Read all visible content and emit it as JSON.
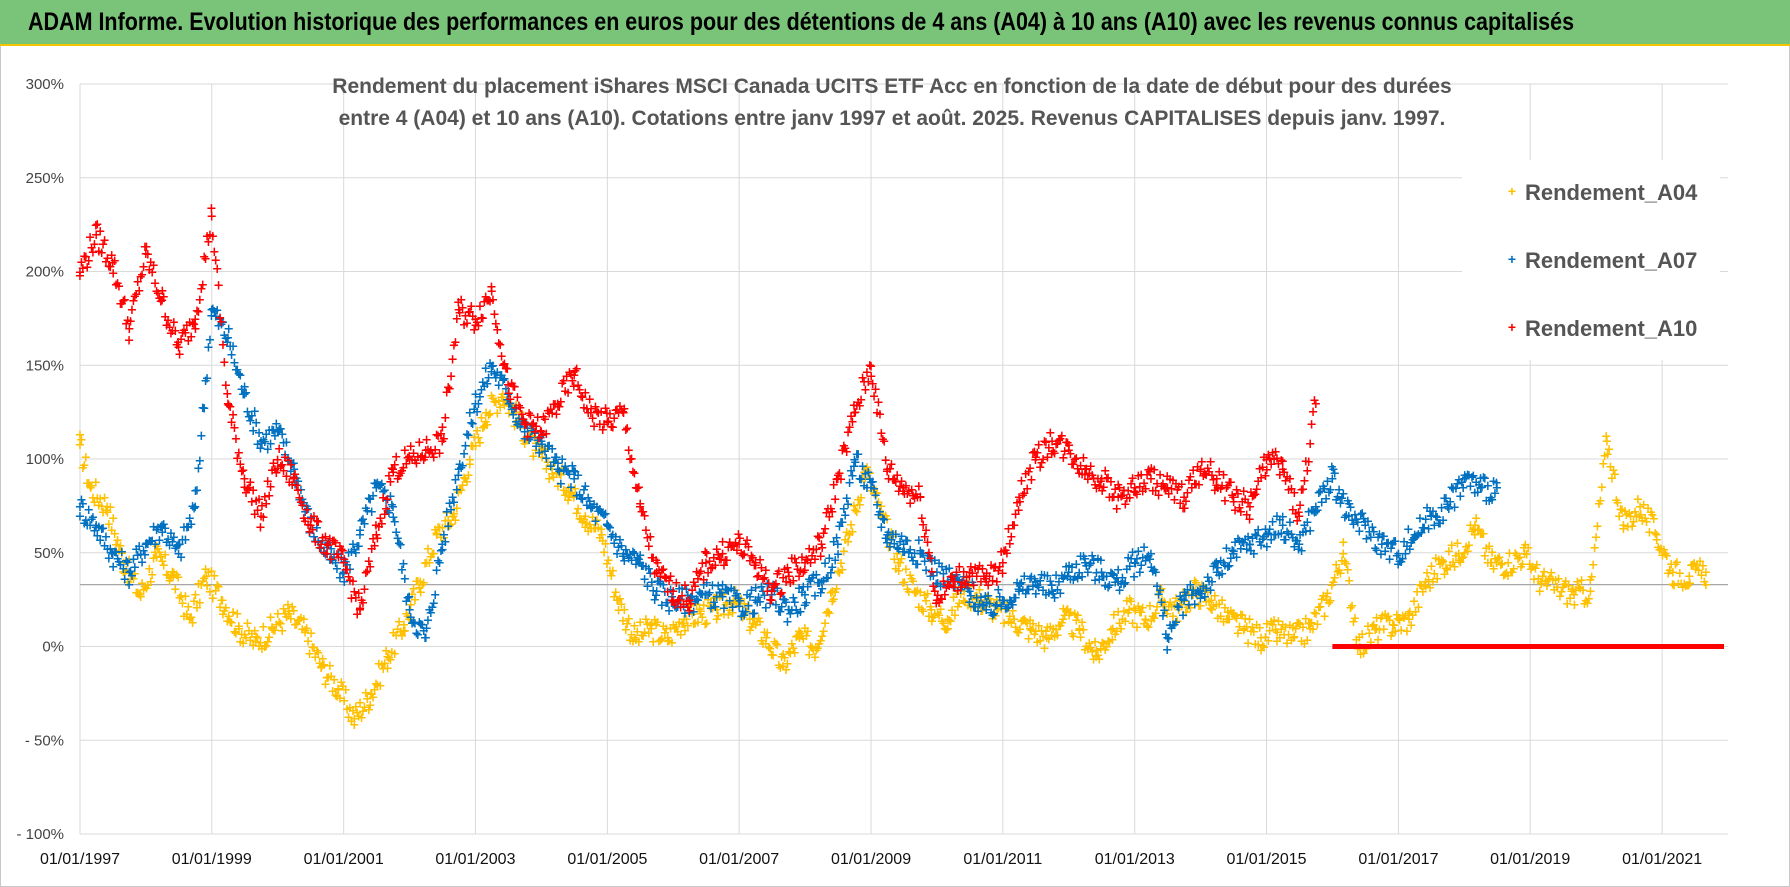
{
  "banner": {
    "title": "ADAM Informe. Evolution historique des performances en euros pour des détentions de 4 ans (A04) à 10 ans (A10) avec les revenus connus capitalisés"
  },
  "colors": {
    "banner_bg": "#7ac47a",
    "A04": "#ffc000",
    "A07": "#0070c0",
    "A10": "#ff0000",
    "grid": "#d9d9d9"
  },
  "chart_data": {
    "type": "scatter",
    "title_lines": [
      "Rendement du placement iShares MSCI Canada UCITS ETF Acc en fonction de la date de début pour des durées",
      "entre 4 (A04) et 10 ans (A10).  Cotations entre janv 1997 et août. 2025. Revenus CAPITALISES depuis janv. 1997."
    ],
    "y_ticks": [
      "- 100%",
      "- 50%",
      "0%",
      "50%",
      "100%",
      "150%",
      "200%",
      "250%",
      "300%"
    ],
    "ylim": [
      -100,
      300
    ],
    "x_ticks": [
      "01/01/1997",
      "01/01/1999",
      "01/01/2001",
      "01/01/2003",
      "01/01/2005",
      "01/01/2007",
      "01/01/2009",
      "01/01/2011",
      "01/01/2013",
      "01/01/2015",
      "01/01/2017",
      "01/01/2019",
      "01/01/2021"
    ],
    "xlim": [
      "1997-01-01",
      "2022-01-01"
    ],
    "reference_line_y": 33,
    "legend": {
      "placement": "top-right"
    },
    "series": [
      {
        "name": "Rendement_A04",
        "marker": "+",
        "points": [
          [
            "1997-01",
            108
          ],
          [
            "1997-03",
            85
          ],
          [
            "1997-06",
            75
          ],
          [
            "1997-09",
            45
          ],
          [
            "1997-12",
            28
          ],
          [
            "1998-03",
            48
          ],
          [
            "1998-06",
            38
          ],
          [
            "1998-09",
            15
          ],
          [
            "1998-12",
            38
          ],
          [
            "1999-03",
            25
          ],
          [
            "1999-06",
            10
          ],
          [
            "1999-09",
            3
          ],
          [
            "1999-12",
            10
          ],
          [
            "2000-03",
            18
          ],
          [
            "2000-06",
            8
          ],
          [
            "2000-09",
            -10
          ],
          [
            "2000-12",
            -22
          ],
          [
            "2001-03",
            -38
          ],
          [
            "2001-06",
            -25
          ],
          [
            "2001-09",
            -5
          ],
          [
            "2001-12",
            12
          ],
          [
            "2002-03",
            35
          ],
          [
            "2002-06",
            60
          ],
          [
            "2002-09",
            70
          ],
          [
            "2002-12",
            100
          ],
          [
            "2003-03",
            125
          ],
          [
            "2003-06",
            135
          ],
          [
            "2003-09",
            120
          ],
          [
            "2003-12",
            105
          ],
          [
            "2004-03",
            95
          ],
          [
            "2004-06",
            85
          ],
          [
            "2004-09",
            70
          ],
          [
            "2004-12",
            60
          ],
          [
            "2005-03",
            25
          ],
          [
            "2005-06",
            5
          ],
          [
            "2005-09",
            10
          ],
          [
            "2005-12",
            5
          ],
          [
            "2006-03",
            15
          ],
          [
            "2006-06",
            18
          ],
          [
            "2006-09",
            20
          ],
          [
            "2006-12",
            25
          ],
          [
            "2007-03",
            15
          ],
          [
            "2007-06",
            5
          ],
          [
            "2007-09",
            -10
          ],
          [
            "2007-12",
            5
          ],
          [
            "2008-03",
            0
          ],
          [
            "2008-06",
            30
          ],
          [
            "2008-09",
            60
          ],
          [
            "2008-12",
            95
          ],
          [
            "2009-03",
            70
          ],
          [
            "2009-06",
            45
          ],
          [
            "2009-09",
            30
          ],
          [
            "2009-12",
            20
          ],
          [
            "2010-03",
            15
          ],
          [
            "2010-06",
            30
          ],
          [
            "2010-09",
            25
          ],
          [
            "2010-12",
            20
          ],
          [
            "2011-03",
            15
          ],
          [
            "2011-06",
            10
          ],
          [
            "2011-09",
            5
          ],
          [
            "2011-12",
            15
          ],
          [
            "2012-03",
            10
          ],
          [
            "2012-06",
            -5
          ],
          [
            "2012-09",
            10
          ],
          [
            "2012-12",
            20
          ],
          [
            "2013-03",
            15
          ],
          [
            "2013-06",
            25
          ],
          [
            "2013-09",
            20
          ],
          [
            "2013-12",
            30
          ],
          [
            "2014-03",
            25
          ],
          [
            "2014-06",
            15
          ],
          [
            "2014-09",
            10
          ],
          [
            "2014-12",
            5
          ],
          [
            "2015-03",
            8
          ],
          [
            "2015-06",
            5
          ],
          [
            "2015-09",
            10
          ],
          [
            "2015-12",
            25
          ],
          [
            "2016-03",
            50
          ],
          [
            "2016-06",
            0
          ],
          [
            "2016-09",
            10
          ],
          [
            "2016-12",
            12
          ],
          [
            "2017-03",
            15
          ],
          [
            "2017-06",
            35
          ],
          [
            "2017-09",
            45
          ],
          [
            "2017-12",
            50
          ],
          [
            "2018-03",
            65
          ],
          [
            "2018-06",
            45
          ],
          [
            "2018-09",
            45
          ],
          [
            "2018-12",
            50
          ],
          [
            "2019-03",
            35
          ],
          [
            "2019-06",
            32
          ],
          [
            "2019-09",
            28
          ],
          [
            "2019-12",
            30
          ],
          [
            "2020-03",
            110
          ],
          [
            "2020-06",
            65
          ],
          [
            "2020-09",
            75
          ],
          [
            "2020-12",
            60
          ],
          [
            "2021-03",
            40
          ],
          [
            "2021-06",
            38
          ],
          [
            "2021-09",
            40
          ]
        ]
      },
      {
        "name": "Rendement_A07",
        "marker": "+",
        "points": [
          [
            "1997-01",
            75
          ],
          [
            "1997-04",
            65
          ],
          [
            "1997-07",
            50
          ],
          [
            "1997-10",
            40
          ],
          [
            "1998-01",
            55
          ],
          [
            "1998-04",
            65
          ],
          [
            "1998-07",
            50
          ],
          [
            "1998-10",
            75
          ],
          [
            "1999-01",
            180
          ],
          [
            "1999-04",
            165
          ],
          [
            "1999-07",
            135
          ],
          [
            "1999-10",
            110
          ],
          [
            "2000-01",
            115
          ],
          [
            "2000-04",
            95
          ],
          [
            "2000-07",
            65
          ],
          [
            "2000-10",
            50
          ],
          [
            "2001-01",
            40
          ],
          [
            "2001-04",
            60
          ],
          [
            "2001-07",
            85
          ],
          [
            "2001-10",
            75
          ],
          [
            "2002-01",
            20
          ],
          [
            "2002-04",
            5
          ],
          [
            "2002-07",
            55
          ],
          [
            "2002-10",
            95
          ],
          [
            "2003-01",
            130
          ],
          [
            "2003-04",
            150
          ],
          [
            "2003-07",
            135
          ],
          [
            "2003-10",
            115
          ],
          [
            "2004-01",
            110
          ],
          [
            "2004-04",
            95
          ],
          [
            "2004-07",
            90
          ],
          [
            "2004-10",
            75
          ],
          [
            "2005-01",
            65
          ],
          [
            "2005-04",
            50
          ],
          [
            "2005-07",
            45
          ],
          [
            "2005-10",
            30
          ],
          [
            "2006-01",
            25
          ],
          [
            "2006-04",
            25
          ],
          [
            "2006-07",
            28
          ],
          [
            "2006-10",
            27
          ],
          [
            "2007-01",
            22
          ],
          [
            "2007-04",
            25
          ],
          [
            "2007-07",
            28
          ],
          [
            "2007-10",
            20
          ],
          [
            "2008-01",
            28
          ],
          [
            "2008-04",
            35
          ],
          [
            "2008-07",
            55
          ],
          [
            "2008-10",
            100
          ],
          [
            "2009-01",
            85
          ],
          [
            "2009-04",
            60
          ],
          [
            "2009-07",
            55
          ],
          [
            "2009-10",
            50
          ],
          [
            "2010-01",
            40
          ],
          [
            "2010-04",
            35
          ],
          [
            "2010-07",
            30
          ],
          [
            "2010-10",
            20
          ],
          [
            "2011-01",
            25
          ],
          [
            "2011-04",
            30
          ],
          [
            "2011-07",
            35
          ],
          [
            "2011-10",
            30
          ],
          [
            "2012-01",
            40
          ],
          [
            "2012-04",
            45
          ],
          [
            "2012-07",
            40
          ],
          [
            "2012-10",
            35
          ],
          [
            "2013-01",
            45
          ],
          [
            "2013-04",
            50
          ],
          [
            "2013-07",
            5
          ],
          [
            "2013-10",
            25
          ],
          [
            "2014-01",
            30
          ],
          [
            "2014-04",
            40
          ],
          [
            "2014-07",
            50
          ],
          [
            "2014-10",
            55
          ],
          [
            "2015-01",
            60
          ],
          [
            "2015-04",
            65
          ],
          [
            "2015-07",
            55
          ],
          [
            "2015-10",
            75
          ],
          [
            "2016-01",
            90
          ],
          [
            "2016-04",
            70
          ],
          [
            "2016-07",
            65
          ],
          [
            "2016-10",
            55
          ],
          [
            "2017-01",
            50
          ],
          [
            "2017-04",
            60
          ],
          [
            "2017-07",
            70
          ],
          [
            "2017-10",
            75
          ],
          [
            "2018-01",
            90
          ],
          [
            "2018-04",
            85
          ],
          [
            "2018-07",
            85
          ]
        ]
      },
      {
        "name": "Rendement_A10",
        "marker": "+",
        "points": [
          [
            "1997-01",
            200
          ],
          [
            "1997-04",
            220
          ],
          [
            "1997-07",
            205
          ],
          [
            "1997-10",
            170
          ],
          [
            "1998-01",
            210
          ],
          [
            "1998-04",
            185
          ],
          [
            "1998-07",
            160
          ],
          [
            "1998-10",
            175
          ],
          [
            "1999-01",
            230
          ],
          [
            "1999-04",
            130
          ],
          [
            "1999-07",
            90
          ],
          [
            "1999-10",
            70
          ],
          [
            "2000-01",
            100
          ],
          [
            "2000-04",
            90
          ],
          [
            "2000-07",
            65
          ],
          [
            "2000-10",
            55
          ],
          [
            "2001-01",
            45
          ],
          [
            "2001-04",
            20
          ],
          [
            "2001-07",
            60
          ],
          [
            "2001-10",
            95
          ],
          [
            "2002-01",
            100
          ],
          [
            "2002-04",
            105
          ],
          [
            "2002-07",
            110
          ],
          [
            "2002-10",
            180
          ],
          [
            "2003-01",
            175
          ],
          [
            "2003-04",
            190
          ],
          [
            "2003-07",
            140
          ],
          [
            "2003-10",
            120
          ],
          [
            "2004-01",
            115
          ],
          [
            "2004-04",
            130
          ],
          [
            "2004-07",
            145
          ],
          [
            "2004-10",
            125
          ],
          [
            "2005-01",
            120
          ],
          [
            "2005-04",
            125
          ],
          [
            "2005-07",
            75
          ],
          [
            "2005-10",
            40
          ],
          [
            "2006-01",
            30
          ],
          [
            "2006-04",
            25
          ],
          [
            "2006-07",
            45
          ],
          [
            "2006-10",
            50
          ],
          [
            "2007-01",
            55
          ],
          [
            "2007-04",
            45
          ],
          [
            "2007-07",
            30
          ],
          [
            "2007-10",
            40
          ],
          [
            "2008-01",
            45
          ],
          [
            "2008-04",
            55
          ],
          [
            "2008-07",
            90
          ],
          [
            "2008-10",
            125
          ],
          [
            "2009-01",
            150
          ],
          [
            "2009-04",
            95
          ],
          [
            "2009-07",
            85
          ],
          [
            "2009-10",
            80
          ],
          [
            "2010-01",
            25
          ],
          [
            "2010-04",
            35
          ],
          [
            "2010-07",
            40
          ],
          [
            "2010-10",
            35
          ],
          [
            "2011-01",
            45
          ],
          [
            "2011-04",
            80
          ],
          [
            "2011-07",
            100
          ],
          [
            "2011-10",
            110
          ],
          [
            "2012-01",
            105
          ],
          [
            "2012-04",
            95
          ],
          [
            "2012-07",
            90
          ],
          [
            "2012-10",
            80
          ],
          [
            "2013-01",
            85
          ],
          [
            "2013-04",
            90
          ],
          [
            "2013-07",
            85
          ],
          [
            "2013-10",
            80
          ],
          [
            "2014-01",
            95
          ],
          [
            "2014-04",
            90
          ],
          [
            "2014-07",
            80
          ],
          [
            "2014-10",
            75
          ],
          [
            "2015-01",
            100
          ],
          [
            "2015-04",
            95
          ],
          [
            "2015-07",
            70
          ],
          [
            "2015-10",
            130
          ]
        ],
        "zero_from": "2016-01"
      }
    ]
  }
}
